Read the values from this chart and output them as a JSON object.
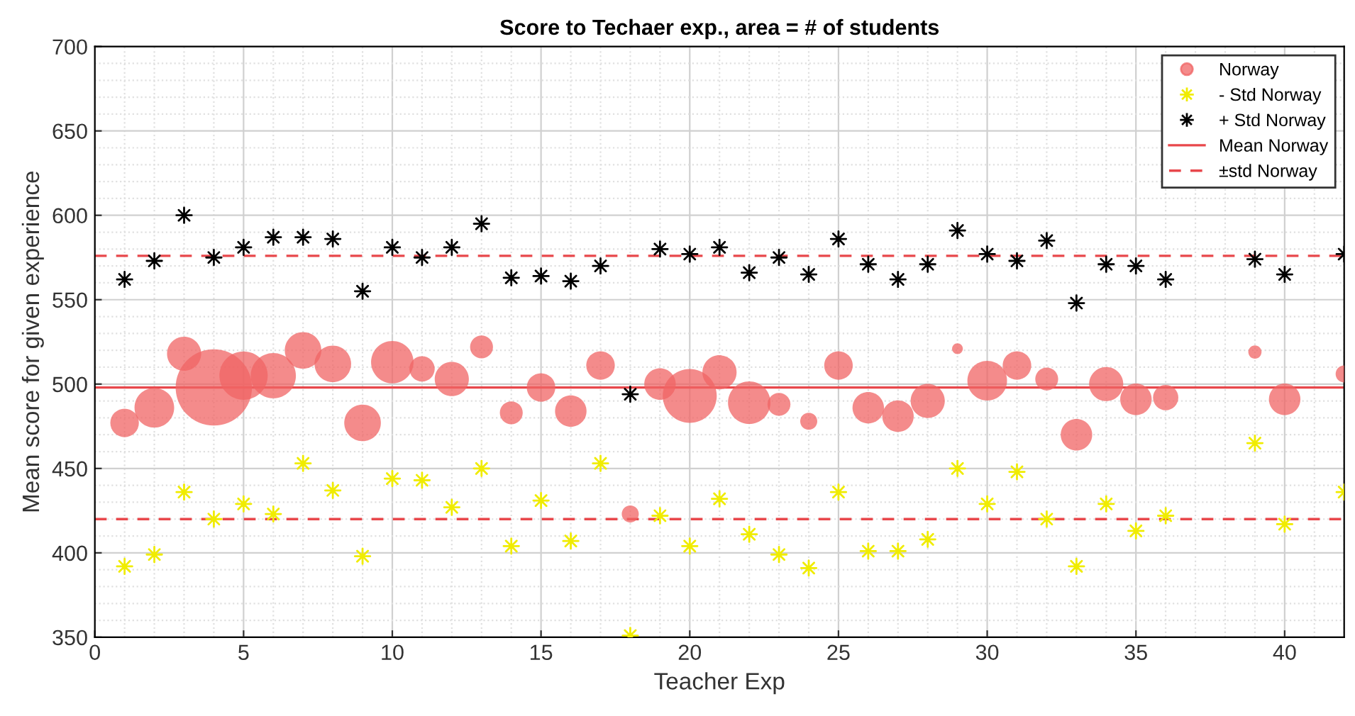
{
  "chart_data": {
    "type": "bubble",
    "title": "Score to Techaer exp., area = # of students",
    "xlabel": "Teacher Exp",
    "ylabel": "Mean score for given experience",
    "x": [
      1,
      2,
      3,
      4,
      5,
      6,
      7,
      8,
      9,
      10,
      11,
      12,
      13,
      14,
      15,
      16,
      17,
      18,
      19,
      20,
      21,
      22,
      23,
      24,
      25,
      26,
      27,
      28,
      29,
      30,
      31,
      32,
      33,
      34,
      35,
      36,
      39,
      40,
      42
    ],
    "series": [
      {
        "name": "Norway",
        "color": "#f06464",
        "values": [
          477,
          486,
          518,
          498,
          505,
          505,
          520,
          512,
          477,
          513,
          509,
          503,
          522,
          483,
          498,
          484,
          511,
          423,
          500,
          493,
          507,
          489,
          488,
          478,
          511,
          486,
          481,
          490,
          521,
          502,
          511,
          503,
          470,
          500,
          491,
          492,
          519,
          491,
          506
        ],
        "sizes": [
          0.14,
          0.27,
          0.2,
          1,
          0.4,
          0.35,
          0.23,
          0.23,
          0.23,
          0.31,
          0.11,
          0.2,
          0.09,
          0.09,
          0.14,
          0.17,
          0.14,
          0.05,
          0.17,
          0.5,
          0.2,
          0.31,
          0.09,
          0.05,
          0.14,
          0.17,
          0.17,
          0.2,
          0.02,
          0.27,
          0.14,
          0.09,
          0.17,
          0.2,
          0.17,
          0.11,
          0.03,
          0.17,
          0.05
        ]
      },
      {
        "name": "- Std Norway",
        "type": "scatter",
        "marker": "cross",
        "color": "#f0ec00",
        "values": [
          392,
          399,
          436,
          420,
          429,
          423,
          453,
          437,
          398,
          444,
          443,
          427,
          450,
          404,
          431,
          407,
          453,
          351,
          422,
          404,
          432,
          411,
          399,
          391,
          436,
          401,
          401,
          408,
          450,
          429,
          448,
          420,
          392,
          429,
          413,
          422,
          465,
          417,
          436
        ]
      },
      {
        "name": "+ Std Norway",
        "type": "scatter",
        "marker": "cross",
        "color": "#000000",
        "values": [
          562,
          573,
          600,
          575,
          581,
          587,
          587,
          586,
          555,
          581,
          575,
          581,
          595,
          563,
          564,
          561,
          570,
          494,
          580,
          577,
          581,
          566,
          575,
          565,
          586,
          571,
          562,
          571,
          591,
          577,
          573,
          585,
          548,
          571,
          570,
          562,
          574,
          565,
          577
        ]
      }
    ],
    "ref_lines": [
      {
        "axis": "y",
        "value": 498,
        "label": "Mean Norway",
        "color": "#e8474b",
        "line_style": "solid"
      },
      {
        "axis": "y",
        "value": 576,
        "label": "±std Norway",
        "color": "#e8474b",
        "line_style": "dashed"
      },
      {
        "axis": "y",
        "value": 420,
        "label": null,
        "color": "#e8474b",
        "line_style": "dashed"
      }
    ],
    "xlim": [
      0,
      42
    ],
    "xticks": [
      0,
      5,
      10,
      15,
      20,
      25,
      30,
      35,
      40
    ],
    "ylim": [
      350,
      700
    ],
    "yticks": [
      350,
      400,
      450,
      500,
      550,
      600,
      650,
      700
    ],
    "grid": true,
    "legend": "top right"
  }
}
